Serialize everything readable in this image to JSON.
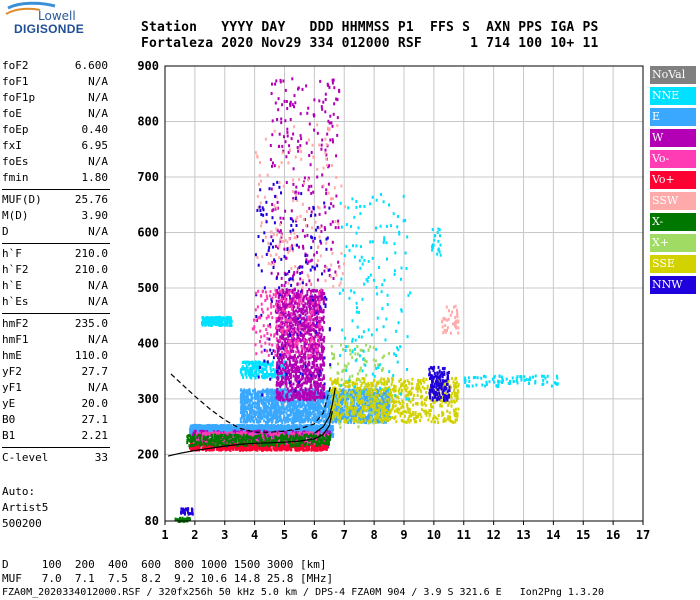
{
  "logo": {
    "line1": "Lowell",
    "line2": "DIGISONDE"
  },
  "header": {
    "labels_line": "Station   YYYY DAY   DDD HHMMSS P1  FFS S  AXN PPS IGA PS",
    "values_line": "Fortaleza 2020 Nov29 334 012000 RSF      1 714 100 10+ 11"
  },
  "params": [
    {
      "group": 1,
      "name": "foF2",
      "value": "6.600"
    },
    {
      "group": 1,
      "name": "foF1",
      "value": "N/A"
    },
    {
      "group": 1,
      "name": "foF1p",
      "value": "N/A"
    },
    {
      "group": 1,
      "name": "foE",
      "value": "N/A"
    },
    {
      "group": 1,
      "name": "foEp",
      "value": "0.40"
    },
    {
      "group": 1,
      "name": "fxI",
      "value": "6.95"
    },
    {
      "group": 1,
      "name": "foEs",
      "value": "N/A"
    },
    {
      "group": 1,
      "name": "fmin",
      "value": "1.80"
    },
    {
      "group": 2,
      "name": "MUF(D)",
      "value": "25.76"
    },
    {
      "group": 2,
      "name": "M(D)",
      "value": "3.90"
    },
    {
      "group": 2,
      "name": "D",
      "value": "N/A"
    },
    {
      "group": 3,
      "name": "h`F",
      "value": "210.0"
    },
    {
      "group": 3,
      "name": "h`F2",
      "value": "210.0"
    },
    {
      "group": 3,
      "name": "h`E",
      "value": "N/A"
    },
    {
      "group": 3,
      "name": "h`Es",
      "value": "N/A"
    },
    {
      "group": 4,
      "name": "hmF2",
      "value": "235.0"
    },
    {
      "group": 4,
      "name": "hmF1",
      "value": "N/A"
    },
    {
      "group": 4,
      "name": "hmE",
      "value": "110.0"
    },
    {
      "group": 4,
      "name": "yF2",
      "value": "27.7"
    },
    {
      "group": 4,
      "name": "yF1",
      "value": "N/A"
    },
    {
      "group": 4,
      "name": "yE",
      "value": "20.0"
    },
    {
      "group": 4,
      "name": "B0",
      "value": "27.1"
    },
    {
      "group": 4,
      "name": "B1",
      "value": "2.21"
    },
    {
      "group": 5,
      "name": "C-level",
      "value": "33"
    }
  ],
  "auto": {
    "line1": "Auto:",
    "line2": "Artist5",
    "line3": "500200"
  },
  "legend": [
    {
      "label": "NoVal",
      "color": "#808080"
    },
    {
      "label": "NNE",
      "color": "#00e0ff"
    },
    {
      "label": "E",
      "color": "#3aa8ff"
    },
    {
      "label": "W",
      "color": "#b400b4"
    },
    {
      "label": "Vo-",
      "color": "#ff3cb4"
    },
    {
      "label": "Vo+",
      "color": "#ff0032"
    },
    {
      "label": "SSW",
      "color": "#ffaaaa"
    },
    {
      "label": "X-",
      "color": "#007800"
    },
    {
      "label": "X+",
      "color": "#a0dc64"
    },
    {
      "label": "SSE",
      "color": "#d2d200"
    },
    {
      "label": "NNW",
      "color": "#1e00dc"
    }
  ],
  "footer": {
    "line1": "D     100  200  400  600  800 1000 1500 3000 [km]",
    "line2": "MUF   7.0  7.1  7.5  8.2  9.2 10.6 14.8 25.8 [MHz]",
    "line3": "FZA0M_2020334012000.RSF / 320fx256h 50 kHz 5.0 km / DPS-4 FZA0M 904 / 3.9 S 321.6 E   Ion2Png 1.3.20"
  },
  "chart_data": {
    "type": "scatter",
    "title": "",
    "xlabel": "",
    "ylabel": "",
    "xlim": [
      1,
      17
    ],
    "ylim": [
      80,
      900
    ],
    "x_ticks": [
      1,
      2,
      3,
      4,
      5,
      6,
      7,
      8,
      9,
      10,
      11,
      12,
      13,
      14,
      15,
      16,
      17
    ],
    "y_ticks": [
      80,
      200,
      300,
      400,
      500,
      600,
      700,
      800,
      900
    ],
    "grid": true,
    "legend_position": "right",
    "traces": [
      {
        "name": "ordinary-trace-upper",
        "style": "dashed",
        "x": [
          1.2,
          1.6,
          2.0,
          2.5,
          3.0,
          3.5,
          4.0,
          4.5,
          5.0,
          5.5,
          6.0,
          6.3,
          6.55
        ],
        "y": [
          345,
          325,
          305,
          282,
          262,
          247,
          240,
          240,
          242,
          246,
          255,
          275,
          325
        ]
      },
      {
        "name": "profile-lower",
        "style": "solid",
        "x": [
          1.1,
          1.5,
          2.0,
          2.5,
          3.0,
          3.5,
          4.0,
          4.5,
          5.0,
          5.5,
          6.0,
          6.3,
          6.5,
          6.6
        ],
        "y": [
          197,
          202,
          207,
          211,
          215,
          218,
          220,
          221,
          222,
          224,
          228,
          236,
          252,
          278
        ]
      },
      {
        "name": "profile-upper",
        "style": "solid",
        "x": [
          6.0,
          6.3,
          6.5,
          6.6,
          6.7
        ],
        "y": [
          238,
          250,
          268,
          290,
          320
        ]
      }
    ],
    "echo_regions": [
      {
        "color_key": "E",
        "x": [
          1.8,
          6.6
        ],
        "y": [
          235,
          255
        ],
        "n": 2000
      },
      {
        "color_key": "E",
        "x": [
          3.5,
          8.5
        ],
        "y": [
          260,
          320
        ],
        "n": 1800
      },
      {
        "color_key": "NNE",
        "x": [
          2.2,
          3.2
        ],
        "y": [
          435,
          450
        ],
        "n": 200
      },
      {
        "color_key": "NNE",
        "x": [
          3.5,
          5.0
        ],
        "y": [
          340,
          370
        ],
        "n": 200
      },
      {
        "color_key": "W",
        "x": [
          4.7,
          6.3
        ],
        "y": [
          300,
          500
        ],
        "n": 1200
      },
      {
        "color_key": "W",
        "x": [
          4.5,
          6.8
        ],
        "y": [
          500,
          880
        ],
        "n": 250
      },
      {
        "color_key": "W",
        "x": [
          1.8,
          6.5
        ],
        "y": [
          215,
          245
        ],
        "n": 500
      },
      {
        "color_key": "Vo+",
        "x": [
          1.8,
          6.4
        ],
        "y": [
          210,
          225
        ],
        "n": 700
      },
      {
        "color_key": "Vo-",
        "x": [
          2.0,
          6.5
        ],
        "y": [
          222,
          242
        ],
        "n": 400
      },
      {
        "color_key": "SSW",
        "x": [
          4.0,
          7.0
        ],
        "y": [
          500,
          800
        ],
        "n": 150
      },
      {
        "color_key": "SSW",
        "x": [
          10.2,
          10.8
        ],
        "y": [
          420,
          470
        ],
        "n": 40
      },
      {
        "color_key": "X-",
        "x": [
          1.7,
          6.5
        ],
        "y": [
          218,
          238
        ],
        "n": 400
      },
      {
        "color_key": "X+",
        "x": [
          6.5,
          8.5
        ],
        "y": [
          250,
          400
        ],
        "n": 120
      },
      {
        "color_key": "SSE",
        "x": [
          6.5,
          10.8
        ],
        "y": [
          260,
          340
        ],
        "n": 700
      },
      {
        "color_key": "NNW",
        "x": [
          4.0,
          6.5
        ],
        "y": [
          300,
          700
        ],
        "n": 150
      },
      {
        "color_key": "NNW",
        "x": [
          9.8,
          10.5
        ],
        "y": [
          300,
          360
        ],
        "n": 150
      },
      {
        "color_key": "NNE",
        "x": [
          11.0,
          14.2
        ],
        "y": [
          325,
          345
        ],
        "n": 80
      },
      {
        "color_key": "NNW",
        "x": [
          1.5,
          1.9
        ],
        "y": [
          95,
          105
        ],
        "n": 30
      },
      {
        "color_key": "X-",
        "x": [
          1.3,
          1.8
        ],
        "y": [
          82,
          88
        ],
        "n": 30
      },
      {
        "color_key": "NNE",
        "x": [
          6.8,
          9.2
        ],
        "y": [
          300,
          680
        ],
        "n": 150
      },
      {
        "color_key": "NNE",
        "x": [
          9.9,
          10.2
        ],
        "y": [
          560,
          610
        ],
        "n": 20
      },
      {
        "color_key": "Vo-",
        "x": [
          3.9,
          6.2
        ],
        "y": [
          380,
          500
        ],
        "n": 200
      }
    ]
  }
}
